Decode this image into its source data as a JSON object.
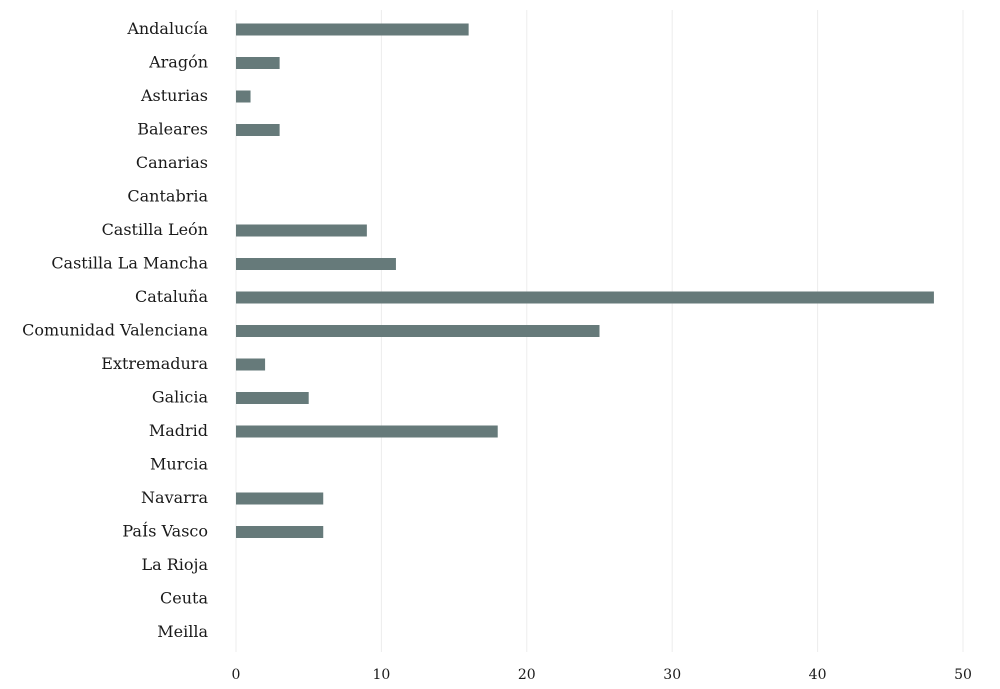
{
  "chart_data": {
    "type": "bar",
    "orientation": "horizontal",
    "categories": [
      "Andalucía",
      "Aragón",
      "Asturias",
      "Baleares",
      "Canarias",
      "Cantabria",
      "Castilla León",
      "Castilla La Mancha",
      "Cataluña",
      "Comunidad Valenciana",
      "Extremadura",
      "Galicia",
      "Madrid",
      "Murcia",
      "Navarra",
      "PaÍs Vasco",
      "La Rioja",
      "Ceuta",
      "Meilla"
    ],
    "values": [
      16,
      3,
      1,
      3,
      0,
      0,
      9,
      11,
      48,
      25,
      2,
      5,
      18,
      0,
      6,
      6,
      0,
      0,
      0
    ],
    "xlim": [
      0,
      50
    ],
    "xticks": [
      0,
      10,
      20,
      30,
      40,
      50
    ],
    "grid": true,
    "bar_color": "#667a7a",
    "title": "",
    "xlabel": "",
    "ylabel": ""
  }
}
